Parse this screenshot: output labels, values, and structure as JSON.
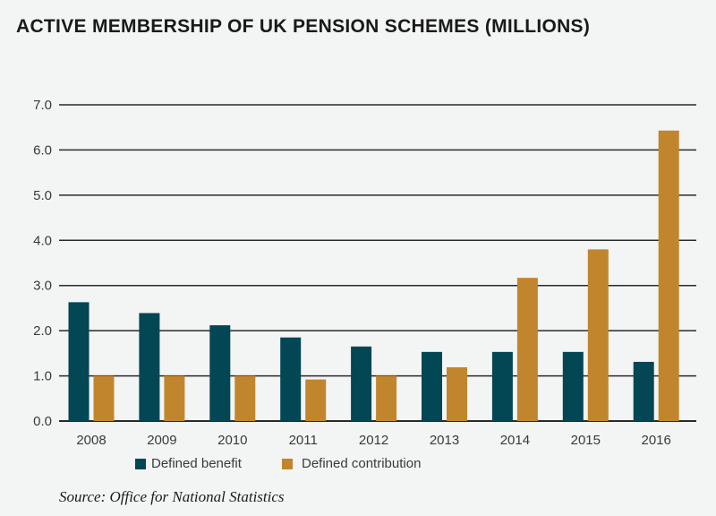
{
  "chart_data": {
    "type": "bar",
    "title": "ACTIVE MEMBERSHIP OF UK PENSION SCHEMES (MILLIONS)",
    "categories": [
      "2008",
      "2009",
      "2010",
      "2011",
      "2012",
      "2013",
      "2014",
      "2015",
      "2016"
    ],
    "series": [
      {
        "name": "Defined benefit",
        "color": "#034654",
        "values": [
          2.63,
          2.39,
          2.12,
          1.85,
          1.65,
          1.53,
          1.53,
          1.53,
          1.31
        ]
      },
      {
        "name": "Defined contribution",
        "color": "#c1862d",
        "values": [
          1.0,
          1.0,
          1.0,
          0.92,
          1.0,
          1.19,
          3.17,
          3.8,
          6.43
        ]
      }
    ],
    "yticks": [
      "0.0",
      "1.0",
      "2.0",
      "3.0",
      "4.0",
      "5.0",
      "6.0",
      "7.0"
    ],
    "ylim": [
      0,
      7
    ],
    "xlabel": "",
    "ylabel": "",
    "grid": true,
    "legend": "bottom",
    "source": "Source: Office for National Statistics"
  }
}
